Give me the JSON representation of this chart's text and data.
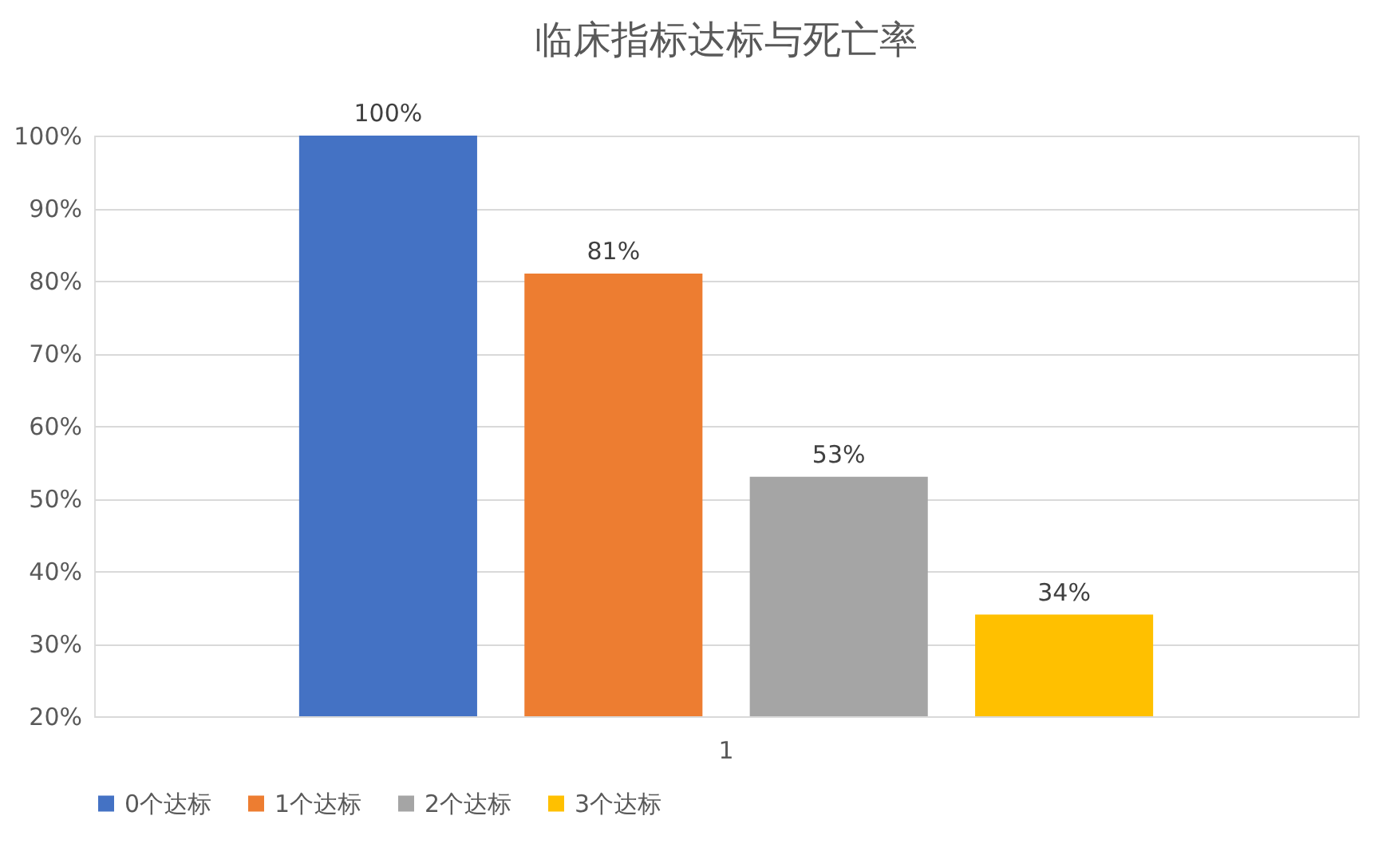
{
  "chart_data": {
    "type": "bar",
    "title": "临床指标达标与死亡率",
    "categories": [
      "1"
    ],
    "series": [
      {
        "name": "0个达标",
        "color": "#4472c4",
        "values": [
          100
        ],
        "value_labels": [
          "100%"
        ]
      },
      {
        "name": "1个达标",
        "color": "#ed7d31",
        "values": [
          81
        ],
        "value_labels": [
          "81%"
        ]
      },
      {
        "name": "2个达标",
        "color": "#a5a5a5",
        "values": [
          53
        ],
        "value_labels": [
          "53%"
        ]
      },
      {
        "name": "3个达标",
        "color": "#ffc000",
        "values": [
          34
        ],
        "value_labels": [
          "34%"
        ]
      }
    ],
    "ylim": [
      20,
      100
    ],
    "yticks": [
      {
        "value": 20,
        "label": "20%"
      },
      {
        "value": 30,
        "label": "30%"
      },
      {
        "value": 40,
        "label": "40%"
      },
      {
        "value": 50,
        "label": "50%"
      },
      {
        "value": 60,
        "label": "60%"
      },
      {
        "value": 70,
        "label": "70%"
      },
      {
        "value": 80,
        "label": "80%"
      },
      {
        "value": 90,
        "label": "90%"
      },
      {
        "value": 100,
        "label": "100%"
      }
    ],
    "grid": "y",
    "legend": "bottom"
  }
}
